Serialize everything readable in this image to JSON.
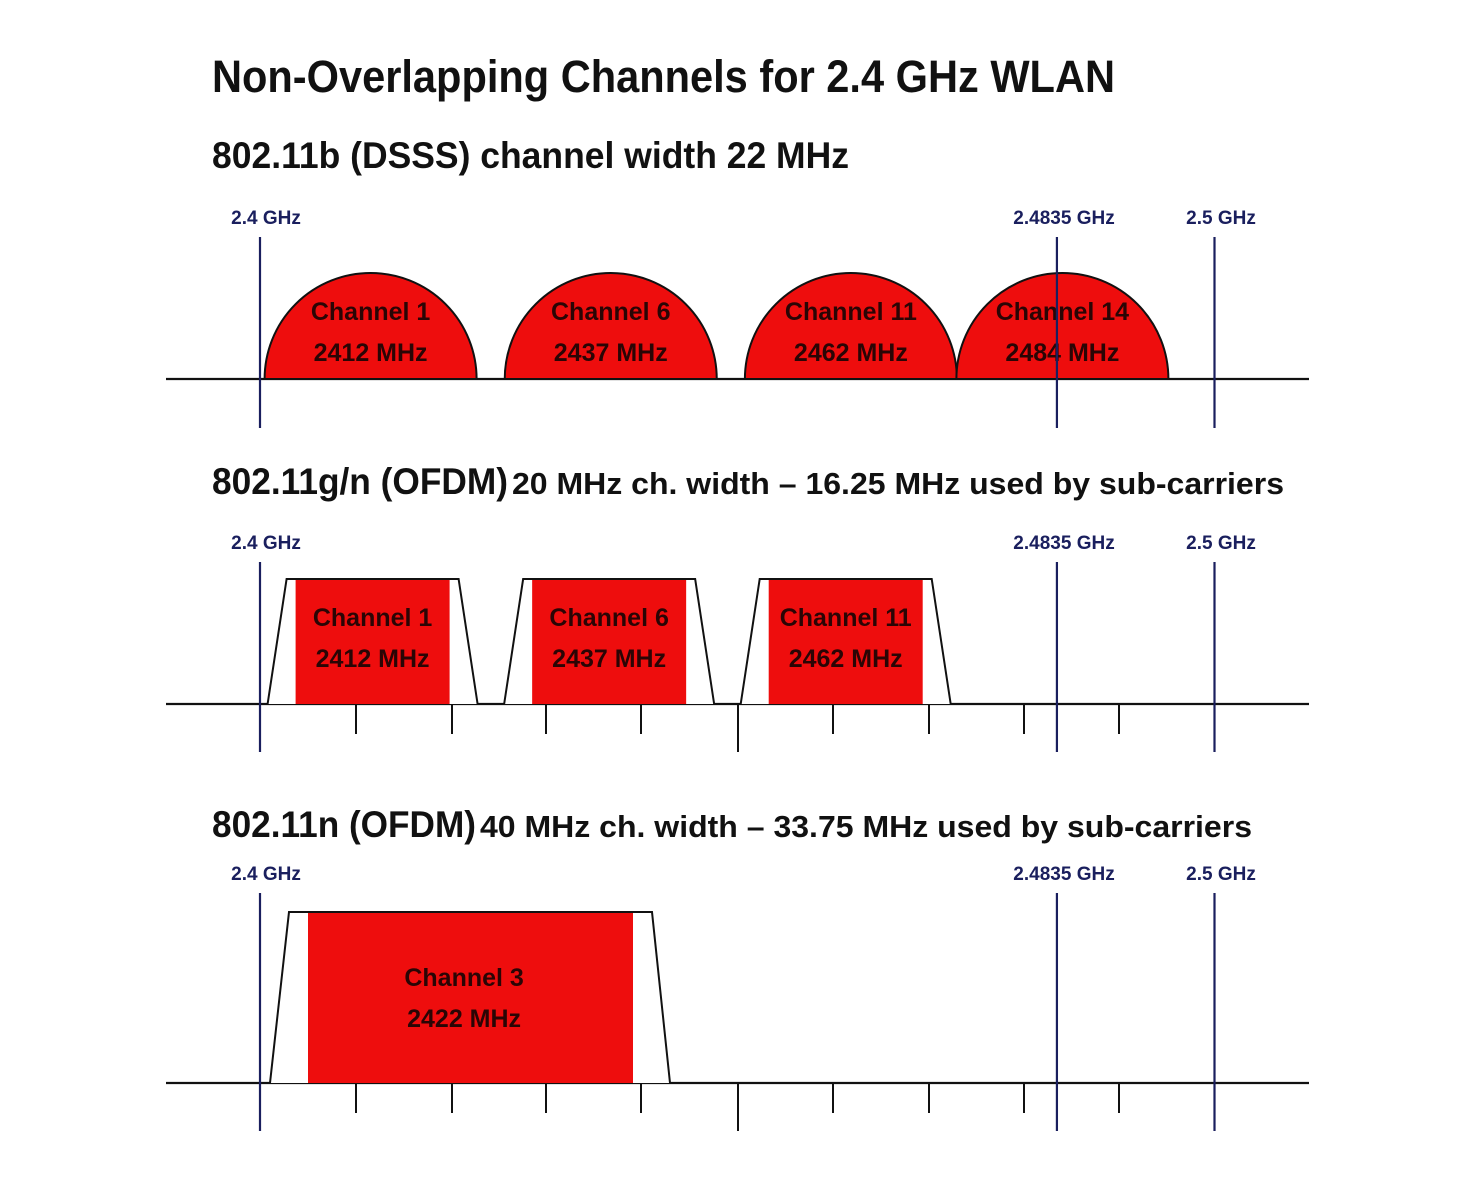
{
  "title": "Non-Overlapping Channels for 2.4 GHz WLAN",
  "colors": {
    "channel_fill": "#ee0d0d",
    "marker_line": "#1a1f5e",
    "axis": "#111111",
    "text": "#111111"
  },
  "frequency_markers": [
    {
      "label": "2.4 GHz",
      "ghz": 2.4
    },
    {
      "label": "2.4835 GHz",
      "ghz": 2.4835
    },
    {
      "label": "2.5 GHz",
      "ghz": 2.5
    }
  ],
  "sections": [
    {
      "id": "b",
      "heading_bold": "802.11b (DSSS) channel width 22 MHz",
      "heading_rest": "",
      "shape": "arc",
      "ticks": false,
      "channels": [
        {
          "name": "Channel 1",
          "freq": "2412 MHz",
          "center_mhz": 2412
        },
        {
          "name": "Channel 6",
          "freq": "2437 MHz",
          "center_mhz": 2437
        },
        {
          "name": "Channel 11",
          "freq": "2462 MHz",
          "center_mhz": 2462
        },
        {
          "name": "Channel 14",
          "freq": "2484 MHz",
          "center_mhz": 2484
        }
      ]
    },
    {
      "id": "gn",
      "heading_bold": "802.11g/n (OFDM)",
      "heading_rest": " 20 MHz ch. width – 16.25 MHz used by sub-carriers",
      "shape": "trapezoid",
      "ticks": true,
      "channels": [
        {
          "name": "Channel 1",
          "freq": "2412 MHz",
          "center_mhz": 2412
        },
        {
          "name": "Channel 6",
          "freq": "2437 MHz",
          "center_mhz": 2437
        },
        {
          "name": "Channel 11",
          "freq": "2462 MHz",
          "center_mhz": 2462
        }
      ]
    },
    {
      "id": "n",
      "heading_bold": "802.11n (OFDM)",
      "heading_rest": " 40 MHz ch. width – 33.75 MHz used by sub-carriers",
      "shape": "trapezoid",
      "ticks": true,
      "channels": [
        {
          "name": "Channel 3",
          "freq": "2422 MHz",
          "center_mhz": 2422
        }
      ]
    }
  ]
}
